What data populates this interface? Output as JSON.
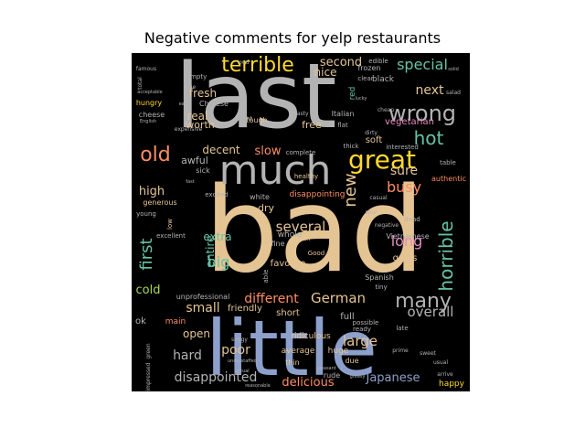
{
  "title": "Negative comments for yelp restaurants",
  "colors": {
    "background": "#000000",
    "palette": [
      "#66c2a5",
      "#fc8d62",
      "#8da0cb",
      "#e78ac3",
      "#a6d854",
      "#ffd92f",
      "#e5c494",
      "#b3b3b3"
    ]
  },
  "words": [
    {
      "text": "bad",
      "color": "#e5c494"
    },
    {
      "text": "last",
      "color": "#b3b3b3"
    },
    {
      "text": "little",
      "color": "#8da0cb"
    },
    {
      "text": "much",
      "color": "#b3b3b3"
    },
    {
      "text": "great",
      "color": "#ffd92f"
    },
    {
      "text": "terrible",
      "color": "#ffd92f"
    },
    {
      "text": "wrong",
      "color": "#b3b3b3"
    },
    {
      "text": "horrible",
      "color": "#66c2a5"
    },
    {
      "text": "many",
      "color": "#b3b3b3"
    },
    {
      "text": "hot",
      "color": "#66c2a5"
    },
    {
      "text": "old",
      "color": "#fc8d62"
    },
    {
      "text": "first",
      "color": "#66c2a5"
    },
    {
      "text": "new",
      "color": "#e5c494"
    },
    {
      "text": "special",
      "color": "#66c2a5"
    },
    {
      "text": "busy",
      "color": "#fc8d62"
    },
    {
      "text": "sure",
      "color": "#e5c494"
    },
    {
      "text": "long",
      "color": "#e78ac3"
    },
    {
      "text": "next",
      "color": "#e5c494"
    },
    {
      "text": "second",
      "color": "#e5c494"
    },
    {
      "text": "nice",
      "color": "#e5c494"
    },
    {
      "text": "fresh",
      "color": "#e5c494"
    },
    {
      "text": "real",
      "color": "#e5c494"
    },
    {
      "text": "German",
      "color": "#e5c494"
    },
    {
      "text": "different",
      "color": "#fc8d62"
    },
    {
      "text": "several",
      "color": "#e5c494"
    },
    {
      "text": "large",
      "color": "#e5c494"
    },
    {
      "text": "overall",
      "color": "#b3b3b3"
    },
    {
      "text": "big",
      "color": "#66c2a5"
    },
    {
      "text": "extra",
      "color": "#66c2a5"
    },
    {
      "text": "entire",
      "color": "#66c2a5"
    },
    {
      "text": "small",
      "color": "#e5c494"
    },
    {
      "text": "poor",
      "color": "#e5c494"
    },
    {
      "text": "hard",
      "color": "#b3b3b3"
    },
    {
      "text": "open",
      "color": "#e5c494"
    },
    {
      "text": "cold",
      "color": "#a6d854"
    },
    {
      "text": "high",
      "color": "#e5c494"
    },
    {
      "text": "slow",
      "color": "#fc8d62"
    },
    {
      "text": "decent",
      "color": "#e5c494"
    },
    {
      "text": "disappointed",
      "color": "#b3b3b3"
    },
    {
      "text": "delicious",
      "color": "#fc8d62"
    },
    {
      "text": "Japanese",
      "color": "#8da0cb"
    },
    {
      "text": "vegetarian",
      "color": "#e78ac3"
    },
    {
      "text": "soft",
      "color": "#e5c494"
    },
    {
      "text": "dry",
      "color": "#e5c494"
    },
    {
      "text": "free",
      "color": "#e5c494"
    },
    {
      "text": "awful",
      "color": "#b3b3b3"
    },
    {
      "text": "worth",
      "color": "#e5c494"
    },
    {
      "text": "hungry",
      "color": "#ffd92f"
    },
    {
      "text": "cheese",
      "color": "#b3b3b3"
    },
    {
      "text": "Chinese",
      "color": "#b3b3b3"
    },
    {
      "text": "empty",
      "color": "#b3b3b3"
    },
    {
      "text": "Italian",
      "color": "#b3b3b3"
    },
    {
      "text": "black",
      "color": "#b3b3b3"
    },
    {
      "text": "frozen",
      "color": "#b3b3b3"
    },
    {
      "text": "clear",
      "color": "#b3b3b3"
    },
    {
      "text": "red",
      "color": "#66c2a5"
    },
    {
      "text": "flat",
      "color": "#b3b3b3"
    },
    {
      "text": "tough",
      "color": "#e5c494"
    },
    {
      "text": "right",
      "color": "#b3b3b3"
    },
    {
      "text": "tasty",
      "color": "#b3b3b3"
    },
    {
      "text": "sick",
      "color": "#b3b3b3"
    },
    {
      "text": "excited",
      "color": "#b3b3b3"
    },
    {
      "text": "white",
      "color": "#b3b3b3"
    },
    {
      "text": "whole",
      "color": "#b3b3b3"
    },
    {
      "text": "disappointing",
      "color": "#fc8d62"
    },
    {
      "text": "fine",
      "color": "#b3b3b3"
    },
    {
      "text": "favorite",
      "color": "#e5c494"
    },
    {
      "text": "Good",
      "color": "#e5c494"
    },
    {
      "text": "gross",
      "color": "#e5c494"
    },
    {
      "text": "Vietnamese",
      "color": "#b3b3b3"
    },
    {
      "text": "Spanish",
      "color": "#b3b3b3"
    },
    {
      "text": "tiny",
      "color": "#b3b3b3"
    },
    {
      "text": "full",
      "color": "#b3b3b3"
    },
    {
      "text": "short",
      "color": "#e5c494"
    },
    {
      "text": "friendly",
      "color": "#e5c494"
    },
    {
      "text": "main",
      "color": "#fc8d62"
    },
    {
      "text": "ok",
      "color": "#b3b3b3"
    },
    {
      "text": "average",
      "color": "#e5c494"
    },
    {
      "text": "ridiculous",
      "color": "#e5c494"
    },
    {
      "text": "huge",
      "color": "#e5c494"
    },
    {
      "text": "thin",
      "color": "#e5c494"
    },
    {
      "text": "rude",
      "color": "#b3b3b3"
    },
    {
      "text": "due",
      "color": "#e5c494"
    },
    {
      "text": "happy",
      "color": "#ffd92f"
    },
    {
      "text": "generous",
      "color": "#e5c494"
    },
    {
      "text": "young",
      "color": "#b3b3b3"
    },
    {
      "text": "low",
      "color": "#e5c494"
    },
    {
      "text": "excellent",
      "color": "#b3b3b3"
    },
    {
      "text": "unprofessional",
      "color": "#b3b3b3"
    },
    {
      "text": "authentic",
      "color": "#fc8d62"
    },
    {
      "text": "interested",
      "color": "#b3b3b3"
    },
    {
      "text": "table",
      "color": "#b3b3b3"
    },
    {
      "text": "complete",
      "color": "#b3b3b3"
    },
    {
      "text": "healthy",
      "color": "#e5c494"
    },
    {
      "text": "thick",
      "color": "#b3b3b3"
    },
    {
      "text": "Asian",
      "color": "#e5c494"
    },
    {
      "text": "able",
      "color": "#b3b3b3"
    },
    {
      "text": "possible",
      "color": "#b3b3b3"
    },
    {
      "text": "ready",
      "color": "#b3b3b3"
    },
    {
      "text": "late",
      "color": "#b3b3b3"
    },
    {
      "text": "dead",
      "color": "#b3b3b3"
    },
    {
      "text": "edible",
      "color": "#b3b3b3"
    },
    {
      "text": "total",
      "color": "#b3b3b3"
    },
    {
      "text": "famous",
      "color": "#b3b3b3"
    },
    {
      "text": "true",
      "color": "#b3b3b3"
    },
    {
      "text": "expensive",
      "color": "#b3b3b3"
    },
    {
      "text": "green",
      "color": "#b3b3b3"
    },
    {
      "text": "soggy",
      "color": "#b3b3b3"
    },
    {
      "text": "impressed",
      "color": "#b3b3b3"
    },
    {
      "text": "loud",
      "color": "#b3b3b3"
    },
    {
      "text": "English",
      "color": "#b3b3b3"
    },
    {
      "text": "sweet",
      "color": "#b3b3b3"
    },
    {
      "text": "salad",
      "color": "#b3b3b3"
    },
    {
      "text": "cheap",
      "color": "#b3b3b3"
    },
    {
      "text": "dirty",
      "color": "#b3b3b3"
    },
    {
      "text": "sour",
      "color": "#b3b3b3"
    },
    {
      "text": "negative",
      "color": "#b3b3b3"
    },
    {
      "text": "casual",
      "color": "#b3b3b3"
    },
    {
      "text": "prime",
      "color": "#b3b3b3"
    },
    {
      "text": "usual",
      "color": "#b3b3b3"
    },
    {
      "text": "arrive",
      "color": "#b3b3b3"
    },
    {
      "text": "greasy",
      "color": "#b3b3b3"
    },
    {
      "text": "reasonable",
      "color": "#b3b3b3"
    },
    {
      "text": "pleasant",
      "color": "#b3b3b3"
    },
    {
      "text": "actual",
      "color": "#b3b3b3"
    },
    {
      "text": "understaffed",
      "color": "#b3b3b3"
    },
    {
      "text": "early",
      "color": "#b3b3b3"
    },
    {
      "text": "lucky",
      "color": "#b3b3b3"
    },
    {
      "text": "solid",
      "color": "#b3b3b3"
    },
    {
      "text": "acceptable",
      "color": "#b3b3b3"
    },
    {
      "text": "fast",
      "color": "#b3b3b3"
    }
  ]
}
